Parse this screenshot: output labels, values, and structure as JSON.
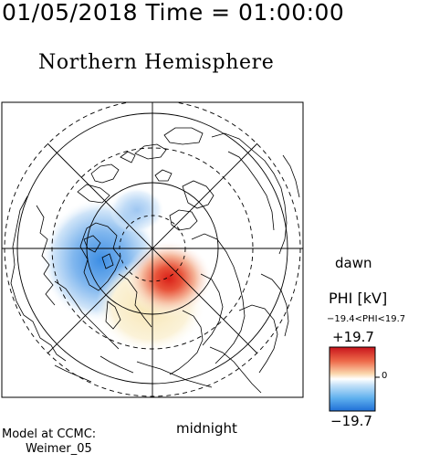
{
  "header": {
    "time_label": "01/05/2018 Time = 01:00:00",
    "title": "Northern Hemisphere"
  },
  "map": {
    "dawn_label": "dawn",
    "midnight_label": "midnight"
  },
  "model": {
    "line1": "Model at CCMC:",
    "line2": "Weimer_05"
  },
  "colorbar": {
    "title": "PHI [kV]",
    "range_label": "−19.4<PHI<19.7",
    "max_label": "+19.7",
    "min_label": "−19.7",
    "zero_label": "0",
    "colors": {
      "positive": "#d7191c",
      "neutral": "#ffffff",
      "negative": "#2c7bd6"
    }
  }
}
